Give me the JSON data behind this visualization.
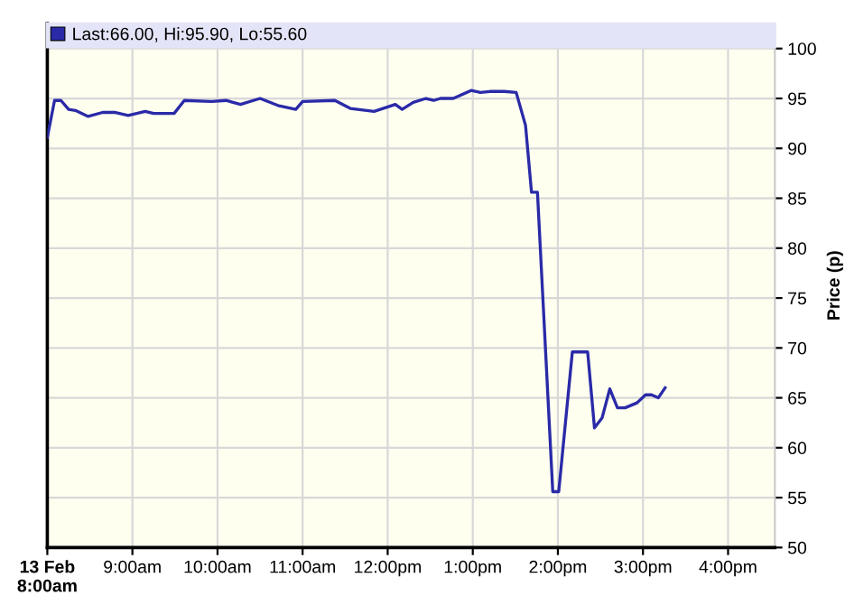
{
  "chart_data": {
    "type": "line",
    "ylabel": "Price (p)",
    "legend": "top",
    "grid": true,
    "marker": "none",
    "line_style": "solid",
    "x": [
      8.0,
      8.085,
      8.16,
      8.25,
      8.33,
      8.48,
      8.65,
      8.79,
      8.95,
      9.15,
      9.25,
      9.49,
      9.61,
      9.93,
      10.1,
      10.27,
      10.5,
      10.71,
      10.92,
      11.0,
      11.38,
      11.56,
      11.84,
      12.09,
      12.17,
      12.3,
      12.45,
      12.54,
      12.62,
      12.77,
      12.98,
      13.09,
      13.2,
      13.37,
      13.51,
      13.62,
      13.69,
      13.76,
      13.94,
      14.01,
      14.17,
      14.35,
      14.43,
      14.52,
      14.61,
      14.7,
      14.79,
      14.93,
      15.03,
      15.1,
      15.18,
      15.26
    ],
    "series": [
      {
        "name": "Last:66.00, Hi:95.90, Lo:55.60",
        "color": "#2a2aa8",
        "values": [
          91.1,
          94.8,
          94.8,
          93.9,
          93.8,
          93.2,
          93.6,
          93.6,
          93.3,
          93.7,
          93.5,
          93.5,
          94.8,
          94.7,
          94.8,
          94.4,
          95.0,
          94.3,
          93.9,
          94.7,
          94.8,
          94.0,
          93.7,
          94.4,
          93.9,
          94.6,
          95.0,
          94.8,
          95.0,
          95.0,
          95.8,
          95.6,
          95.7,
          95.7,
          95.6,
          92.3,
          85.6,
          85.6,
          55.6,
          55.6,
          69.6,
          69.6,
          62.0,
          63.0,
          65.9,
          64.0,
          64.0,
          64.5,
          65.3,
          65.3,
          65.0,
          66.0
        ]
      }
    ],
    "xlim": [
      8,
      16.55
    ],
    "xticks": [
      {
        "value": 8,
        "label": "13 Feb\n8:00am"
      },
      {
        "value": 9,
        "label": "9:00am"
      },
      {
        "value": 10,
        "label": "10:00am"
      },
      {
        "value": 11,
        "label": "11:00am"
      },
      {
        "value": 12,
        "label": "12:00pm"
      },
      {
        "value": 13,
        "label": "1:00pm"
      },
      {
        "value": 14,
        "label": "2:00pm"
      },
      {
        "value": 15,
        "label": "3:00pm"
      },
      {
        "value": 16,
        "label": "4:00pm"
      }
    ],
    "ylim": [
      50,
      102.5
    ],
    "yticks": [
      50,
      55,
      60,
      65,
      70,
      75,
      80,
      85,
      90,
      95,
      100
    ]
  }
}
